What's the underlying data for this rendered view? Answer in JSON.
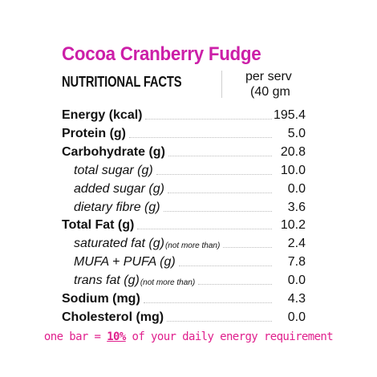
{
  "product": {
    "title": "Cocoa Cranberry Fudge"
  },
  "header": {
    "label": "NUTRITIONAL FACTS",
    "serving_line1": "per serv",
    "serving_line2": "(40 gm"
  },
  "nutrients": [
    {
      "label": "Energy (kcal)",
      "note": "",
      "value": "195.4",
      "level": "main"
    },
    {
      "label": "Protein (g)",
      "note": "",
      "value": "5.0",
      "level": "main"
    },
    {
      "label": "Carbohydrate (g)",
      "note": "",
      "value": "20.8",
      "level": "main"
    },
    {
      "label": "total sugar (g)",
      "note": "",
      "value": "10.0",
      "level": "sub"
    },
    {
      "label": "added sugar (g)",
      "note": "",
      "value": "0.0",
      "level": "sub"
    },
    {
      "label": "dietary fibre (g)",
      "note": "",
      "value": "3.6",
      "level": "sub"
    },
    {
      "label": "Total Fat (g)",
      "note": "",
      "value": "10.2",
      "level": "main"
    },
    {
      "label": "saturated fat (g)",
      "note": "(not more than)",
      "value": "2.4",
      "level": "sub"
    },
    {
      "label": "MUFA + PUFA (g)",
      "note": "",
      "value": "7.8",
      "level": "sub"
    },
    {
      "label": "trans fat (g)",
      "note": "(not more than)",
      "value": "0.0",
      "level": "sub"
    },
    {
      "label": "Sodium (mg)",
      "note": "",
      "value": "4.3",
      "level": "main"
    },
    {
      "label": "Cholesterol (mg)",
      "note": "",
      "value": "0.0",
      "level": "main"
    }
  ],
  "footer": {
    "prefix": "one bar = ",
    "percent": "10%",
    "suffix": " of your daily energy requirement"
  },
  "colors": {
    "title": "#cc1fa8",
    "footer": "#e0208d",
    "text": "#111111"
  }
}
